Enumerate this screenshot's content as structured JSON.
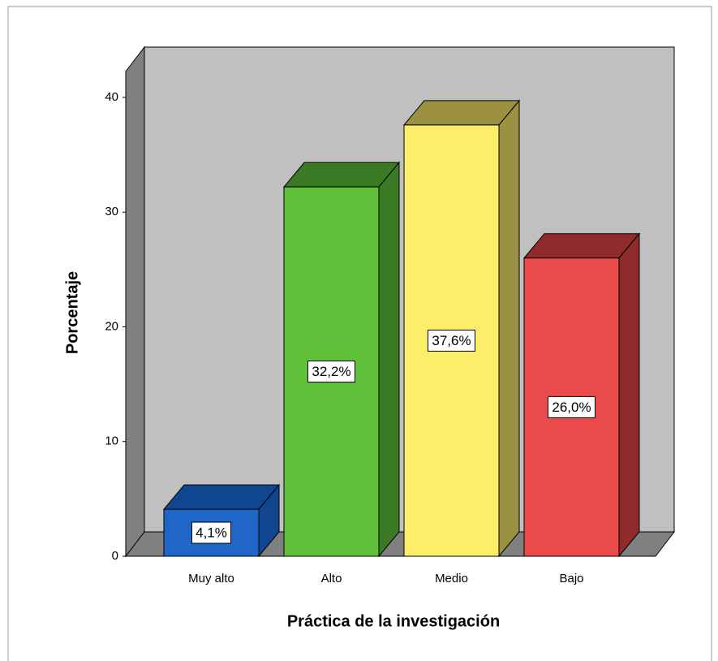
{
  "chart_data": {
    "type": "bar3d",
    "categories": [
      "Muy alto",
      "Alto",
      "Medio",
      "Bajo"
    ],
    "values": [
      4.1,
      32.2,
      37.6,
      26.0
    ],
    "value_labels": [
      "4,1%",
      "32,2%",
      "37,6%",
      "26,0%"
    ],
    "colors": [
      "#1f66c8",
      "#5fc23a",
      "#fdee6a",
      "#ea4a4a"
    ],
    "shade_colors": [
      "#0f468f",
      "#3b7a25",
      "#9c9140",
      "#8f2b2b"
    ],
    "ylabel": "Porcentaje",
    "xlabel": "Práctica de la investigación",
    "ylim": [
      0,
      40
    ],
    "yticks": [
      0,
      10,
      20,
      30,
      40
    ],
    "grid": false
  }
}
